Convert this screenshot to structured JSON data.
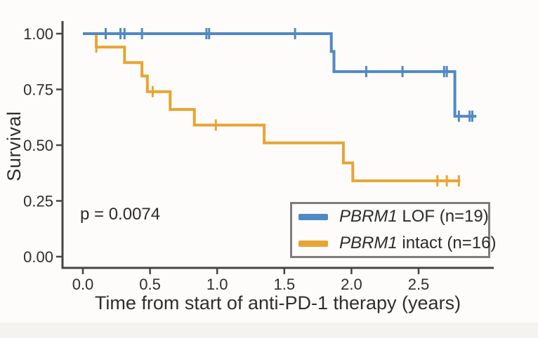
{
  "chart_data": {
    "type": "line",
    "subtype": "kaplan-meier-step-curve",
    "title": "",
    "xlabel": "Time from start of anti-PD-1 therapy (years)",
    "ylabel": "Survival",
    "xlim": [
      0,
      3.05
    ],
    "ylim": [
      0,
      1.0
    ],
    "grid": false,
    "x_ticks": [
      {
        "value": 0.0,
        "label": "0.0"
      },
      {
        "value": 0.5,
        "label": "0.5"
      },
      {
        "value": 1.0,
        "label": "1.0"
      },
      {
        "value": 1.5,
        "label": "1.5"
      },
      {
        "value": 2.0,
        "label": "2.0"
      },
      {
        "value": 2.5,
        "label": "2.5"
      }
    ],
    "y_ticks": [
      {
        "value": 1.0,
        "label": "1.00"
      },
      {
        "value": 0.75,
        "label": "0.75"
      },
      {
        "value": 0.5,
        "label": "0.50"
      },
      {
        "value": 0.25,
        "label": "0.25"
      },
      {
        "value": 0.0,
        "label": "0.00"
      }
    ],
    "annotation": {
      "text": "p = 0.0074"
    },
    "legend": {
      "position": "bottom-right",
      "entries": [
        {
          "id": "lof",
          "gene": "PBRM1",
          "rest": " LOF (n=19)",
          "color": "#4f89c6"
        },
        {
          "id": "intact",
          "gene": "PBRM1",
          "rest": " intact (n=16)",
          "color": "#e8a432"
        }
      ]
    },
    "series": [
      {
        "name": "PBRM1 intact",
        "n": 16,
        "color": "#e8a432",
        "steps": [
          [
            0.0,
            1.0
          ],
          [
            0.1,
            1.0
          ],
          [
            0.1,
            0.94
          ],
          [
            0.31,
            0.94
          ],
          [
            0.31,
            0.87
          ],
          [
            0.44,
            0.87
          ],
          [
            0.44,
            0.81
          ],
          [
            0.48,
            0.81
          ],
          [
            0.48,
            0.74
          ],
          [
            0.65,
            0.74
          ],
          [
            0.65,
            0.66
          ],
          [
            0.83,
            0.66
          ],
          [
            0.83,
            0.59
          ],
          [
            1.35,
            0.59
          ],
          [
            1.35,
            0.51
          ],
          [
            1.94,
            0.51
          ],
          [
            1.94,
            0.42
          ],
          [
            2.01,
            0.42
          ],
          [
            2.01,
            0.34
          ],
          [
            2.81,
            0.34
          ]
        ],
        "censor_marks": [
          [
            0.1,
            0.94
          ],
          [
            0.52,
            0.74
          ],
          [
            0.99,
            0.59
          ],
          [
            2.64,
            0.34
          ],
          [
            2.71,
            0.34
          ],
          [
            2.8,
            0.34
          ]
        ]
      },
      {
        "name": "PBRM1 LOF",
        "n": 19,
        "color": "#4f89c6",
        "steps": [
          [
            0.0,
            1.0
          ],
          [
            1.85,
            1.0
          ],
          [
            1.85,
            0.92
          ],
          [
            1.87,
            0.92
          ],
          [
            1.87,
            0.83
          ],
          [
            2.77,
            0.83
          ],
          [
            2.77,
            0.63
          ],
          [
            2.93,
            0.63
          ]
        ],
        "censor_marks": [
          [
            0.17,
            1.0
          ],
          [
            0.28,
            1.0
          ],
          [
            0.31,
            1.0
          ],
          [
            0.44,
            1.0
          ],
          [
            0.92,
            1.0
          ],
          [
            0.94,
            1.0
          ],
          [
            1.58,
            1.0
          ],
          [
            2.11,
            0.83
          ],
          [
            2.38,
            0.83
          ],
          [
            2.69,
            0.83
          ],
          [
            2.71,
            0.83
          ],
          [
            2.8,
            0.63
          ],
          [
            2.88,
            0.63
          ],
          [
            2.9,
            0.63
          ]
        ]
      }
    ],
    "colors": {
      "axis": "#454545",
      "text": "#2e2e2e",
      "legend_border": "#7d7d7d",
      "background": "#fdfcfa"
    }
  }
}
